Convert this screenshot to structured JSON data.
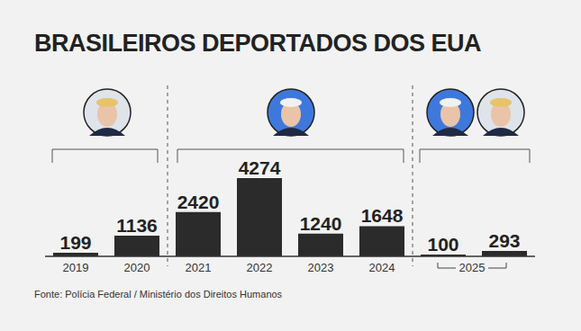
{
  "chart_data": {
    "type": "bar",
    "title": "BRASILEIROS DEPORTADOS DOS EUA",
    "categories": [
      "2019",
      "2020",
      "2021",
      "2022",
      "2023",
      "2024",
      null,
      null
    ],
    "values": [
      199,
      1136,
      2420,
      4274,
      1240,
      1648,
      100,
      293
    ],
    "color": "#2b2b2b",
    "ylim": [
      0,
      4274
    ],
    "data_labels": true,
    "tick_labels": "x",
    "annotations": [
      "2025"
    ],
    "source": "Fonte: Polícia Federal / Ministério dos Direitos Humanos"
  }
}
